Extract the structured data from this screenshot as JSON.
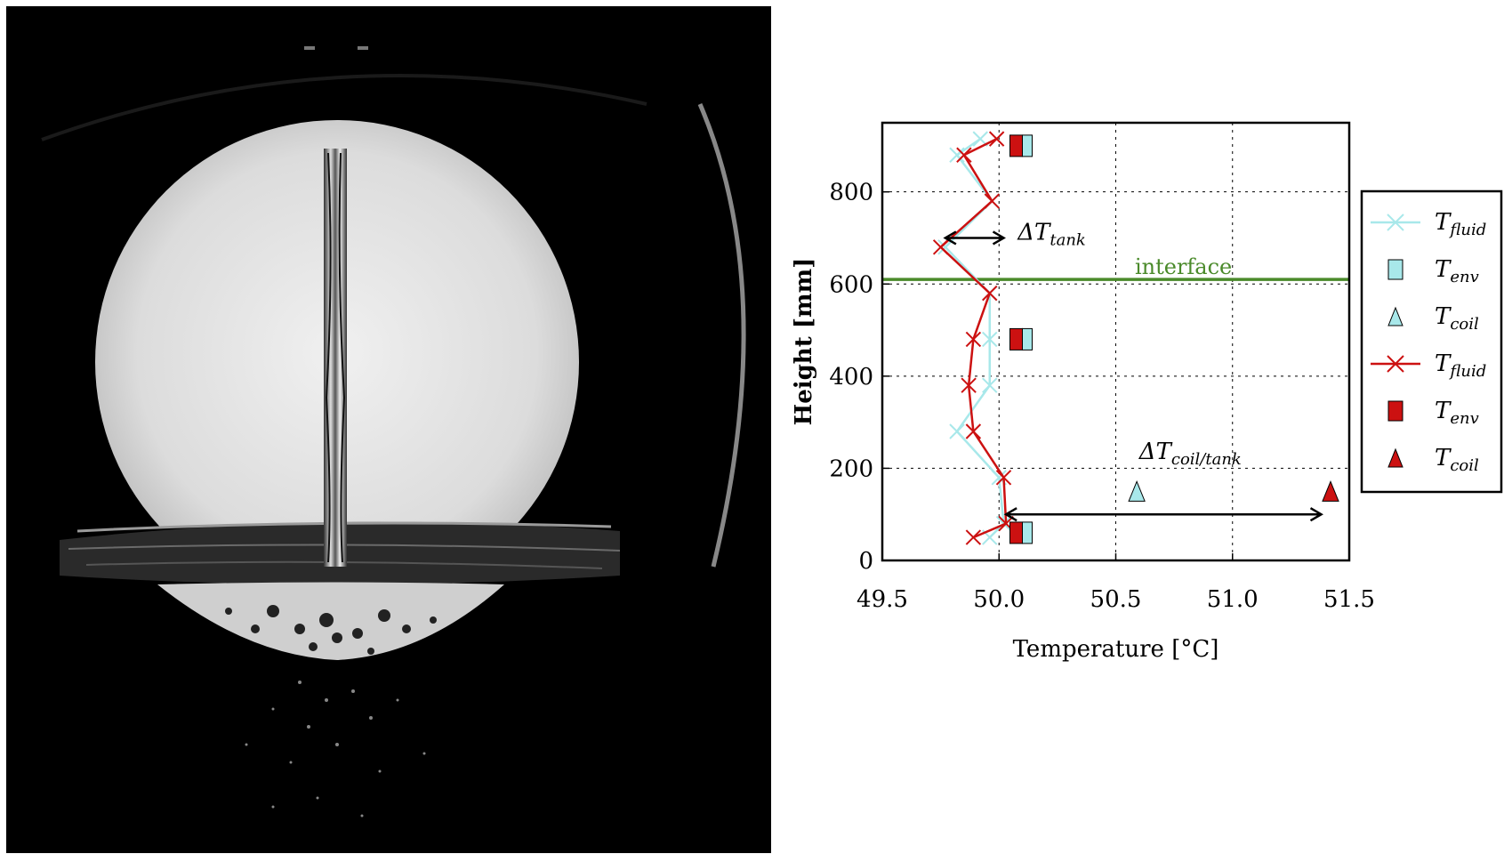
{
  "photo": {
    "description_icon": "jet-plunging-into-tank-photo-icon"
  },
  "chart_data": {
    "type": "line",
    "xlabel": "Temperature [°C]",
    "ylabel": "Height [mm]",
    "xlim": [
      49.5,
      51.5
    ],
    "ylim": [
      0,
      950
    ],
    "xticks": [
      "49.5",
      "50.0",
      "50.5",
      "51.0",
      "51.5"
    ],
    "yticks": [
      "0",
      "200",
      "400",
      "600",
      "800"
    ],
    "grid": true,
    "interface": {
      "label": "interface",
      "y": 610,
      "color": "#4a8a2a"
    },
    "annotations": {
      "dT_tank": "ΔT",
      "dT_tank_sub": "tank",
      "dT_coil": "ΔT",
      "dT_coil_sub": "coil/tank"
    },
    "series": [
      {
        "name": "T",
        "sub": "fluid",
        "color": "#a8e8ea",
        "points": [
          [
            49.92,
            915
          ],
          [
            49.82,
            880
          ],
          [
            49.97,
            780
          ],
          [
            49.77,
            680
          ],
          [
            49.96,
            580
          ],
          [
            49.96,
            480
          ],
          [
            49.96,
            380
          ],
          [
            49.82,
            280
          ],
          [
            50.0,
            180
          ],
          [
            50.02,
            80
          ],
          [
            49.96,
            50
          ]
        ]
      },
      {
        "name": "T",
        "sub": "fluid",
        "color": "#cc1111",
        "points": [
          [
            49.99,
            915
          ],
          [
            49.85,
            880
          ],
          [
            49.97,
            780
          ],
          [
            49.75,
            680
          ],
          [
            49.96,
            580
          ],
          [
            49.89,
            480
          ],
          [
            49.87,
            380
          ],
          [
            49.89,
            280
          ],
          [
            50.02,
            180
          ],
          [
            50.03,
            80
          ],
          [
            49.89,
            50
          ]
        ]
      }
    ],
    "env_markers": [
      {
        "x": 50.1,
        "y": 900
      },
      {
        "x": 50.1,
        "y": 480
      },
      {
        "x": 50.1,
        "y": 60
      }
    ],
    "coil_markers": [
      {
        "x": 50.59,
        "y": 150,
        "color": "#a8e8ea"
      },
      {
        "x": 51.42,
        "y": 150,
        "color": "#cc1111"
      }
    ],
    "legend": {
      "placement": "right",
      "entries": [
        {
          "name": "T",
          "sub": "fluid",
          "kind": "line-x",
          "color": "#a8e8ea"
        },
        {
          "name": "T",
          "sub": "env",
          "kind": "square",
          "color": "#a8e8ea"
        },
        {
          "name": "T",
          "sub": "coil",
          "kind": "triangle",
          "color": "#a8e8ea"
        },
        {
          "name": "T",
          "sub": "fluid",
          "kind": "line-x",
          "color": "#cc1111"
        },
        {
          "name": "T",
          "sub": "env",
          "kind": "square",
          "color": "#cc1111"
        },
        {
          "name": "T",
          "sub": "coil",
          "kind": "triangle",
          "color": "#cc1111"
        }
      ]
    }
  }
}
